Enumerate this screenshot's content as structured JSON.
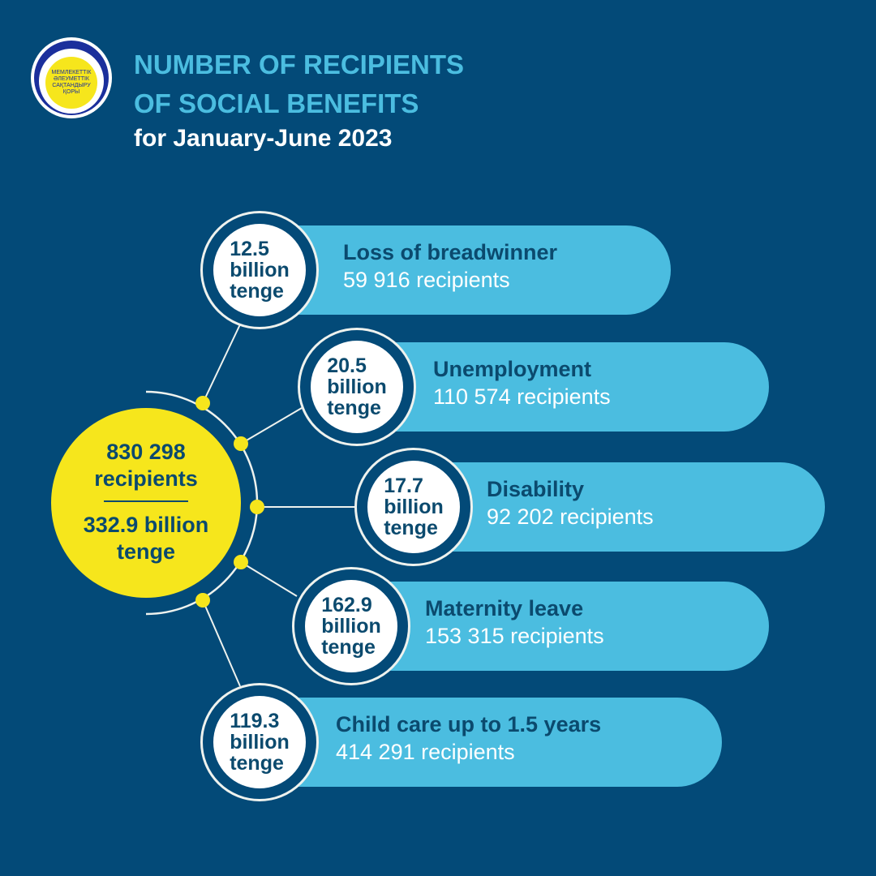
{
  "logo": {
    "text": "МЕМЛЕКЕТТІК\nӘЛЕУМЕТТІК\nСАҚТАНДЫРУ\nҚОРЫ"
  },
  "header": {
    "title_line1": "NUMBER OF RECIPIENTS",
    "title_line2": "OF SOCIAL BENEFITS",
    "subtitle": "for January-June 2023"
  },
  "total": {
    "recipients": "830 298",
    "recipients_unit": "recipients",
    "amount": "332.9 billion",
    "amount_unit": "tenge"
  },
  "items": [
    {
      "amount": "12.5",
      "unit1": "billion",
      "unit2": "tenge",
      "label": "Loss of breadwinner",
      "recipients": "59 916 recipients"
    },
    {
      "amount": "20.5",
      "unit1": "billion",
      "unit2": "tenge",
      "label": "Unemployment",
      "recipients": "110 574 recipients"
    },
    {
      "amount": "17.7",
      "unit1": "billion",
      "unit2": "tenge",
      "label": "Disability",
      "recipients": "92 202 recipients"
    },
    {
      "amount": "162.9",
      "unit1": "billion",
      "unit2": "tenge",
      "label": "Maternity leave",
      "recipients": "153 315 recipients"
    },
    {
      "amount": "119.3",
      "unit1": "billion",
      "unit2": "tenge",
      "label": "Child care up to 1.5 years",
      "recipients": "414 291 recipients"
    }
  ],
  "colors": {
    "background": "#034a78",
    "accent": "#4bbde0",
    "yellow": "#f6e61c",
    "dark_text": "#0b4a6e"
  }
}
